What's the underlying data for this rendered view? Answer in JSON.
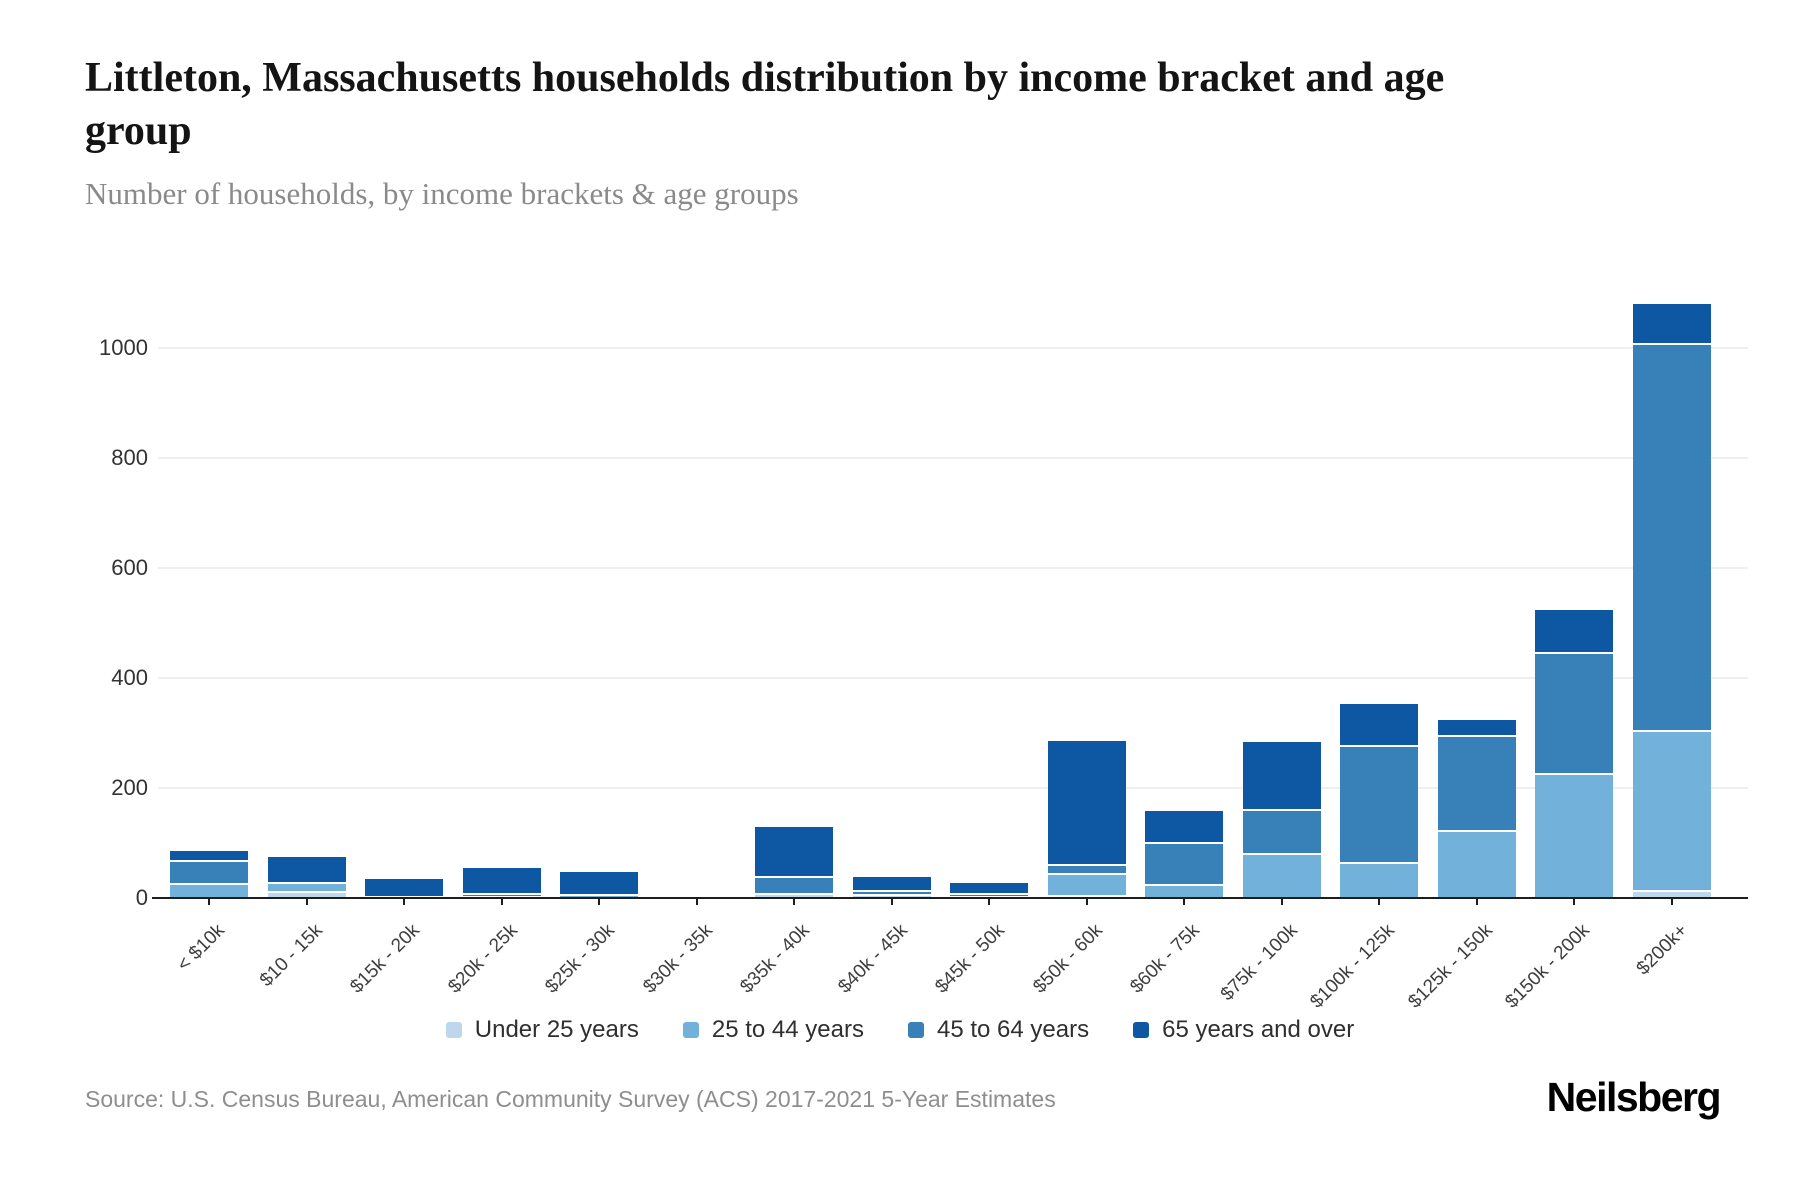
{
  "header": {
    "title": "Littleton, Massachusetts households distribution by income bracket and age group",
    "subtitle": "Number of households, by income brackets & age groups"
  },
  "chart_data": {
    "type": "bar",
    "stacked": true,
    "title": "Littleton, Massachusetts households distribution by income bracket and age group",
    "subtitle": "Number of households, by income brackets & age groups",
    "categories": [
      "< $10k",
      "$10 - 15k",
      "$15k - 20k",
      "$20k - 25k",
      "$25k - 30k",
      "$30k - 35k",
      "$35k - 40k",
      "$40k - 45k",
      "$45k - 50k",
      "$50k - 60k",
      "$60k - 75k",
      "$75k - 100k",
      "$100k - 125k",
      "$125k - 150k",
      "$150k - 200k",
      "$200k+"
    ],
    "series": [
      {
        "name": "Under 25 years",
        "color": "#bdd8ec",
        "values": [
          0,
          12,
          0,
          4,
          0,
          0,
          10,
          8,
          4,
          5,
          0,
          0,
          0,
          0,
          0,
          15
        ]
      },
      {
        "name": "25 to 44 years",
        "color": "#72b1d9",
        "values": [
          27,
          18,
          0,
          0,
          8,
          0,
          0,
          0,
          0,
          40,
          25,
          82,
          66,
          124,
          228,
          290
        ]
      },
      {
        "name": "45 to 64 years",
        "color": "#3781b8",
        "values": [
          42,
          0,
          4,
          6,
          0,
          0,
          30,
          6,
          5,
          16,
          76,
          80,
          212,
          173,
          219,
          705
        ]
      },
      {
        "name": "65 years and over",
        "color": "#0e57a2",
        "values": [
          17,
          45,
          30,
          45,
          40,
          0,
          90,
          24,
          18,
          224,
          57,
          122,
          75,
          27,
          76,
          70
        ]
      }
    ],
    "ylim": [
      0,
      1105
    ],
    "yticks": [
      0,
      200,
      400,
      600,
      800,
      1000
    ],
    "xlabel": "",
    "ylabel": "",
    "grid": "horizontal",
    "legend_position": "bottom"
  },
  "footer": {
    "source": "Source: U.S. Census Bureau, American Community Survey (ACS) 2017-2021 5-Year Estimates",
    "brand": "Neilsberg"
  }
}
